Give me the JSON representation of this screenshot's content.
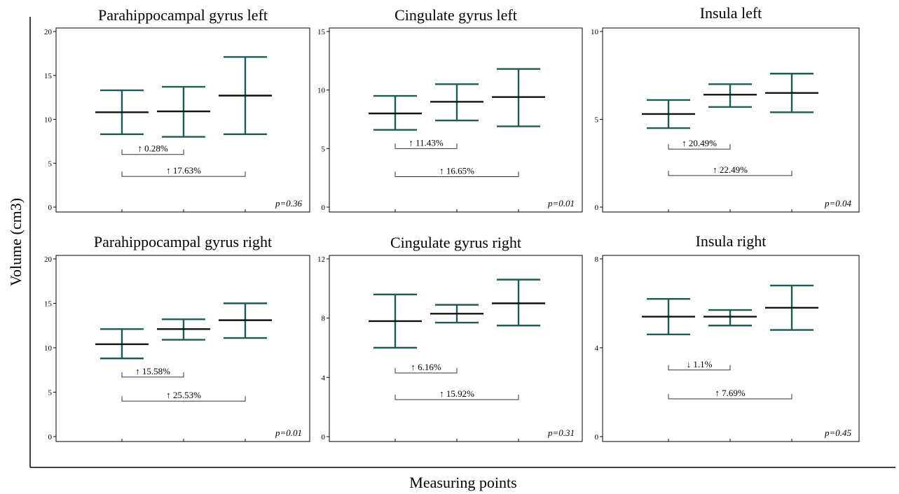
{
  "figure": {
    "ylabel": "Volume (cm3)",
    "xlabel": "Measuring points"
  },
  "chart_data": [
    {
      "type": "errorbar",
      "title": "Parahippocampal  gyrus left",
      "ylim": [
        0,
        20
      ],
      "yticks": [
        0,
        5,
        10,
        15,
        20
      ],
      "points": [
        {
          "x": 1,
          "mean": 10.8,
          "low": 8.3,
          "high": 13.3
        },
        {
          "x": 2,
          "mean": 10.9,
          "low": 8.0,
          "high": 13.7
        },
        {
          "x": 3,
          "mean": 12.7,
          "low": 8.3,
          "high": 17.1
        }
      ],
      "comparisons": [
        {
          "from": 1,
          "to": 2,
          "label": "↑ 0.28%",
          "y": 6.0
        },
        {
          "from": 1,
          "to": 3,
          "label": "↑ 17.63%",
          "y": 3.5
        }
      ],
      "p_value": "p=0.36"
    },
    {
      "type": "errorbar",
      "title": "Cingulate gyrus left",
      "ylim": [
        0,
        15
      ],
      "yticks": [
        0,
        5,
        10,
        15
      ],
      "points": [
        {
          "x": 1,
          "mean": 8.0,
          "low": 6.6,
          "high": 9.5
        },
        {
          "x": 2,
          "mean": 9.0,
          "low": 7.4,
          "high": 10.5
        },
        {
          "x": 3,
          "mean": 9.4,
          "low": 6.9,
          "high": 11.8
        }
      ],
      "comparisons": [
        {
          "from": 1,
          "to": 2,
          "label": "↑ 11.43%",
          "y": 5.0
        },
        {
          "from": 1,
          "to": 3,
          "label": "↑ 16.65%",
          "y": 2.6
        }
      ],
      "p_value": "p=0.01"
    },
    {
      "type": "errorbar",
      "title": "Insula left",
      "ylim": [
        0,
        10
      ],
      "yticks": [
        0,
        5,
        10
      ],
      "points": [
        {
          "x": 1,
          "mean": 5.3,
          "low": 4.5,
          "high": 6.1
        },
        {
          "x": 2,
          "mean": 6.4,
          "low": 5.7,
          "high": 7.0
        },
        {
          "x": 3,
          "mean": 6.5,
          "low": 5.4,
          "high": 7.6
        }
      ],
      "comparisons": [
        {
          "from": 1,
          "to": 2,
          "label": "↑ 20.49%",
          "y": 3.3
        },
        {
          "from": 1,
          "to": 3,
          "label": "↑ 22.49%",
          "y": 1.8
        }
      ],
      "p_value": "p=0.04"
    },
    {
      "type": "errorbar",
      "title": "Parahippocampal  gyrus right",
      "ylim": [
        0,
        20
      ],
      "yticks": [
        0,
        5,
        10,
        15,
        20
      ],
      "points": [
        {
          "x": 1,
          "mean": 10.4,
          "low": 8.8,
          "high": 12.1
        },
        {
          "x": 2,
          "mean": 12.1,
          "low": 10.9,
          "high": 13.2
        },
        {
          "x": 3,
          "mean": 13.1,
          "low": 11.1,
          "high": 15.0
        }
      ],
      "comparisons": [
        {
          "from": 1,
          "to": 2,
          "label": "↑ 15.58%",
          "y": 6.7
        },
        {
          "from": 1,
          "to": 3,
          "label": "↑ 25.53%",
          "y": 4.0
        }
      ],
      "p_value": "p=0.01"
    },
    {
      "type": "errorbar",
      "title": "Cingulate gyrus right",
      "ylim": [
        0,
        12
      ],
      "yticks": [
        0,
        4,
        8,
        12
      ],
      "points": [
        {
          "x": 1,
          "mean": 7.8,
          "low": 6.0,
          "high": 9.6
        },
        {
          "x": 2,
          "mean": 8.3,
          "low": 7.7,
          "high": 8.9
        },
        {
          "x": 3,
          "mean": 9.0,
          "low": 7.5,
          "high": 10.6
        }
      ],
      "comparisons": [
        {
          "from": 1,
          "to": 2,
          "label": "↑ 6.16%",
          "y": 4.3
        },
        {
          "from": 1,
          "to": 3,
          "label": "↑ 15.92%",
          "y": 2.5
        }
      ],
      "p_value": "p=0.31"
    },
    {
      "type": "errorbar",
      "title": "Insula right",
      "ylim": [
        0,
        8
      ],
      "yticks": [
        0,
        4,
        8
      ],
      "points": [
        {
          "x": 1,
          "mean": 5.4,
          "low": 4.6,
          "high": 6.2
        },
        {
          "x": 2,
          "mean": 5.4,
          "low": 5.0,
          "high": 5.7
        },
        {
          "x": 3,
          "mean": 5.8,
          "low": 4.8,
          "high": 6.8
        }
      ],
      "comparisons": [
        {
          "from": 1,
          "to": 2,
          "label": "↓ 1.1%",
          "y": 3.0
        },
        {
          "from": 1,
          "to": 3,
          "label": "↑ 7.69%",
          "y": 1.7
        }
      ],
      "p_value": "p=0.45"
    }
  ],
  "colors": {
    "errorbar": "#1d5c55",
    "mean": "#111111",
    "bracket": "#333333",
    "frame": "#000000"
  }
}
